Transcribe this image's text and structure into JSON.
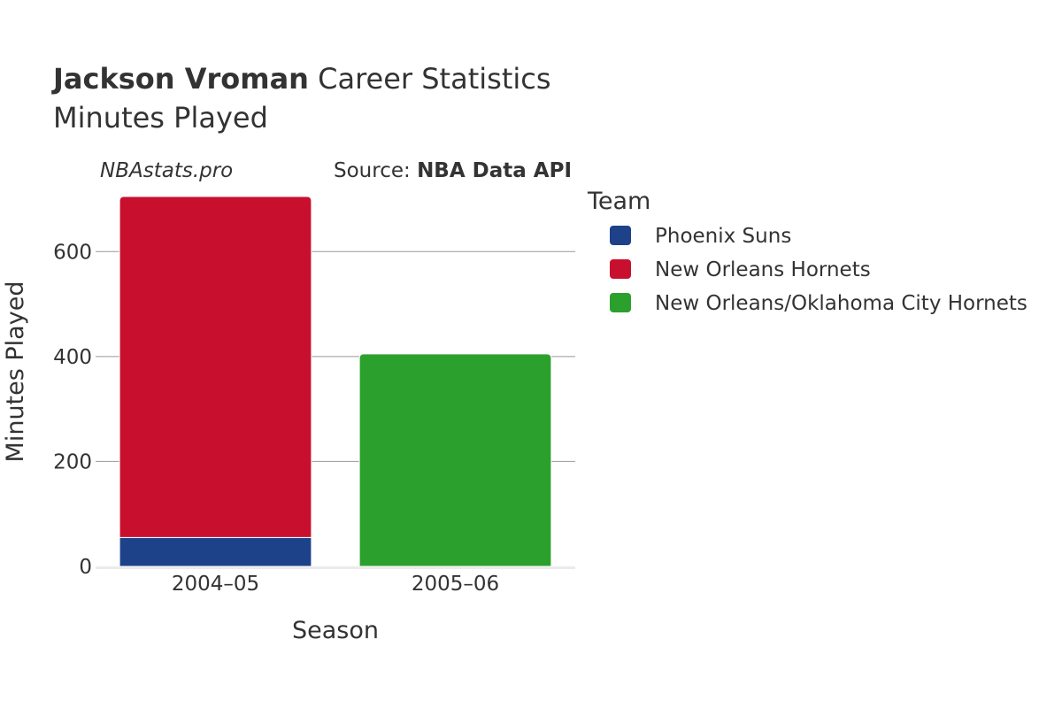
{
  "header": {
    "title_bold": "Jackson Vroman",
    "title_rest": " Career Statistics",
    "subtitle": "Minutes Played"
  },
  "credits": {
    "site": "NBAstats.pro",
    "source_label": "Source: ",
    "source_name": "NBA Data API"
  },
  "legend": {
    "title": "Team",
    "placement": "right"
  },
  "chart_data": {
    "type": "bar",
    "stacked": true,
    "categories": [
      "2004–05",
      "2005–06"
    ],
    "series": [
      {
        "name": "Phoenix Suns",
        "color": "#1d428a",
        "values": [
          55,
          0
        ]
      },
      {
        "name": "New Orleans Hornets",
        "color": "#c8102e",
        "values": [
          650,
          0
        ]
      },
      {
        "name": "New Orleans/Oklahoma City Hornets",
        "color": "#2ca02c",
        "values": [
          0,
          405
        ]
      }
    ],
    "xlabel": "Season",
    "ylabel": "Minutes Played",
    "ylim": [
      0,
      705
    ],
    "yticks": [
      0,
      200,
      400,
      600
    ],
    "grid": true
  }
}
